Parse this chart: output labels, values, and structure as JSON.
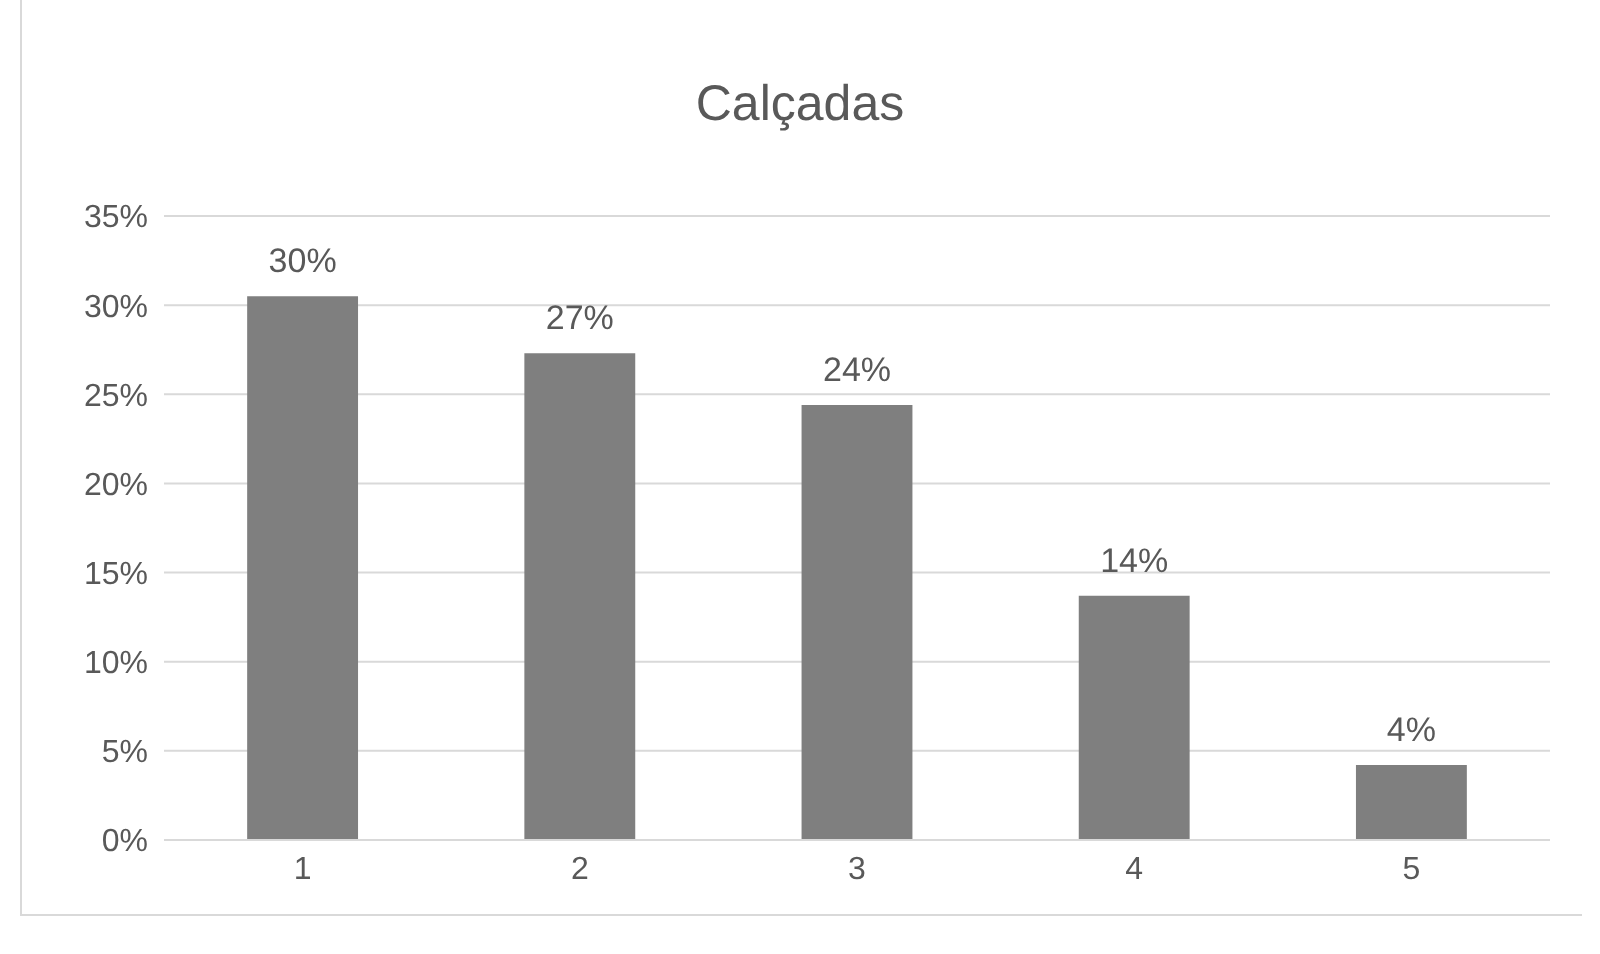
{
  "chart_data": {
    "type": "bar",
    "title": "Calçadas",
    "categories": [
      "1",
      "2",
      "3",
      "4",
      "5"
    ],
    "series": [
      {
        "color": "#7f7f7f",
        "values": [
          30.5,
          27.3,
          24.4,
          13.7,
          4.2
        ],
        "value_labels": [
          "30%",
          "27%",
          "24%",
          "14%",
          "4%"
        ]
      }
    ],
    "ylim": [
      0,
      35
    ],
    "yticks": [
      {
        "value": 0,
        "label": "0%"
      },
      {
        "value": 5,
        "label": "5%"
      },
      {
        "value": 10,
        "label": "10%"
      },
      {
        "value": 15,
        "label": "15%"
      },
      {
        "value": 20,
        "label": "20%"
      },
      {
        "value": 25,
        "label": "25%"
      },
      {
        "value": 30,
        "label": "30%"
      },
      {
        "value": 35,
        "label": "35%"
      }
    ],
    "grid": "y",
    "legend": false
  }
}
